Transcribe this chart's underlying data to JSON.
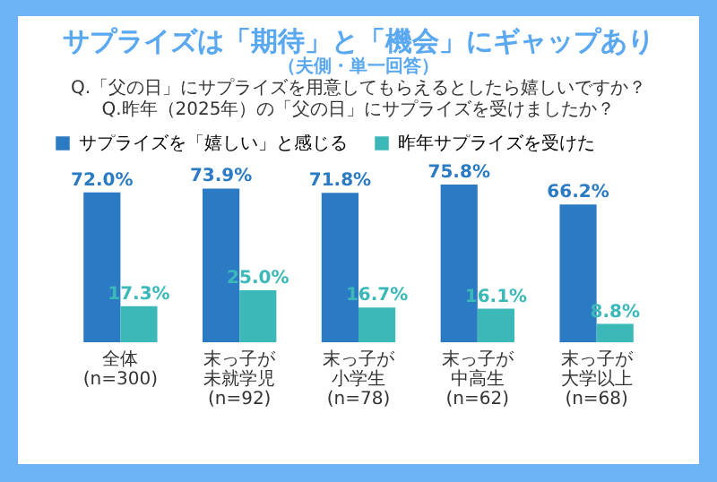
{
  "chart_data": {
    "type": "bar",
    "title": "サプライズは「期待」と「機会」にギャップあり",
    "subtitle": "（夫側・単一回答）",
    "annotations": [
      "Q.「父の日」にサプライズを用意してもらえるとしたら嬉しいですか？",
      "Q.昨年（2025年）の「父の日」にサプライズを受けましたか？"
    ],
    "categories": [
      "全体(n=300)",
      "末っ子が未就学児(n=92)",
      "末っ子が小学生(n=78)",
      "末っ子が中高生(n=62)",
      "末っ子が大学以上(n=68)"
    ],
    "series": [
      {
        "name": "サプライズを「嬉しい」と感じる",
        "color": "#2a7bc4",
        "values": [
          72.0,
          73.9,
          71.8,
          75.8,
          66.2
        ],
        "value_labels": [
          "72.0%",
          "73.9%",
          "71.8%",
          "75.8%",
          "66.2%"
        ]
      },
      {
        "name": "昨年サプライズを受けた",
        "color": "#3cb8b8",
        "values": [
          17.3,
          25.0,
          16.7,
          16.1,
          8.8
        ],
        "value_labels": [
          "17.3%",
          "25.0%",
          "16.7%",
          "16.1%",
          "8.8%"
        ]
      }
    ],
    "legend": "top",
    "grid": false
  }
}
